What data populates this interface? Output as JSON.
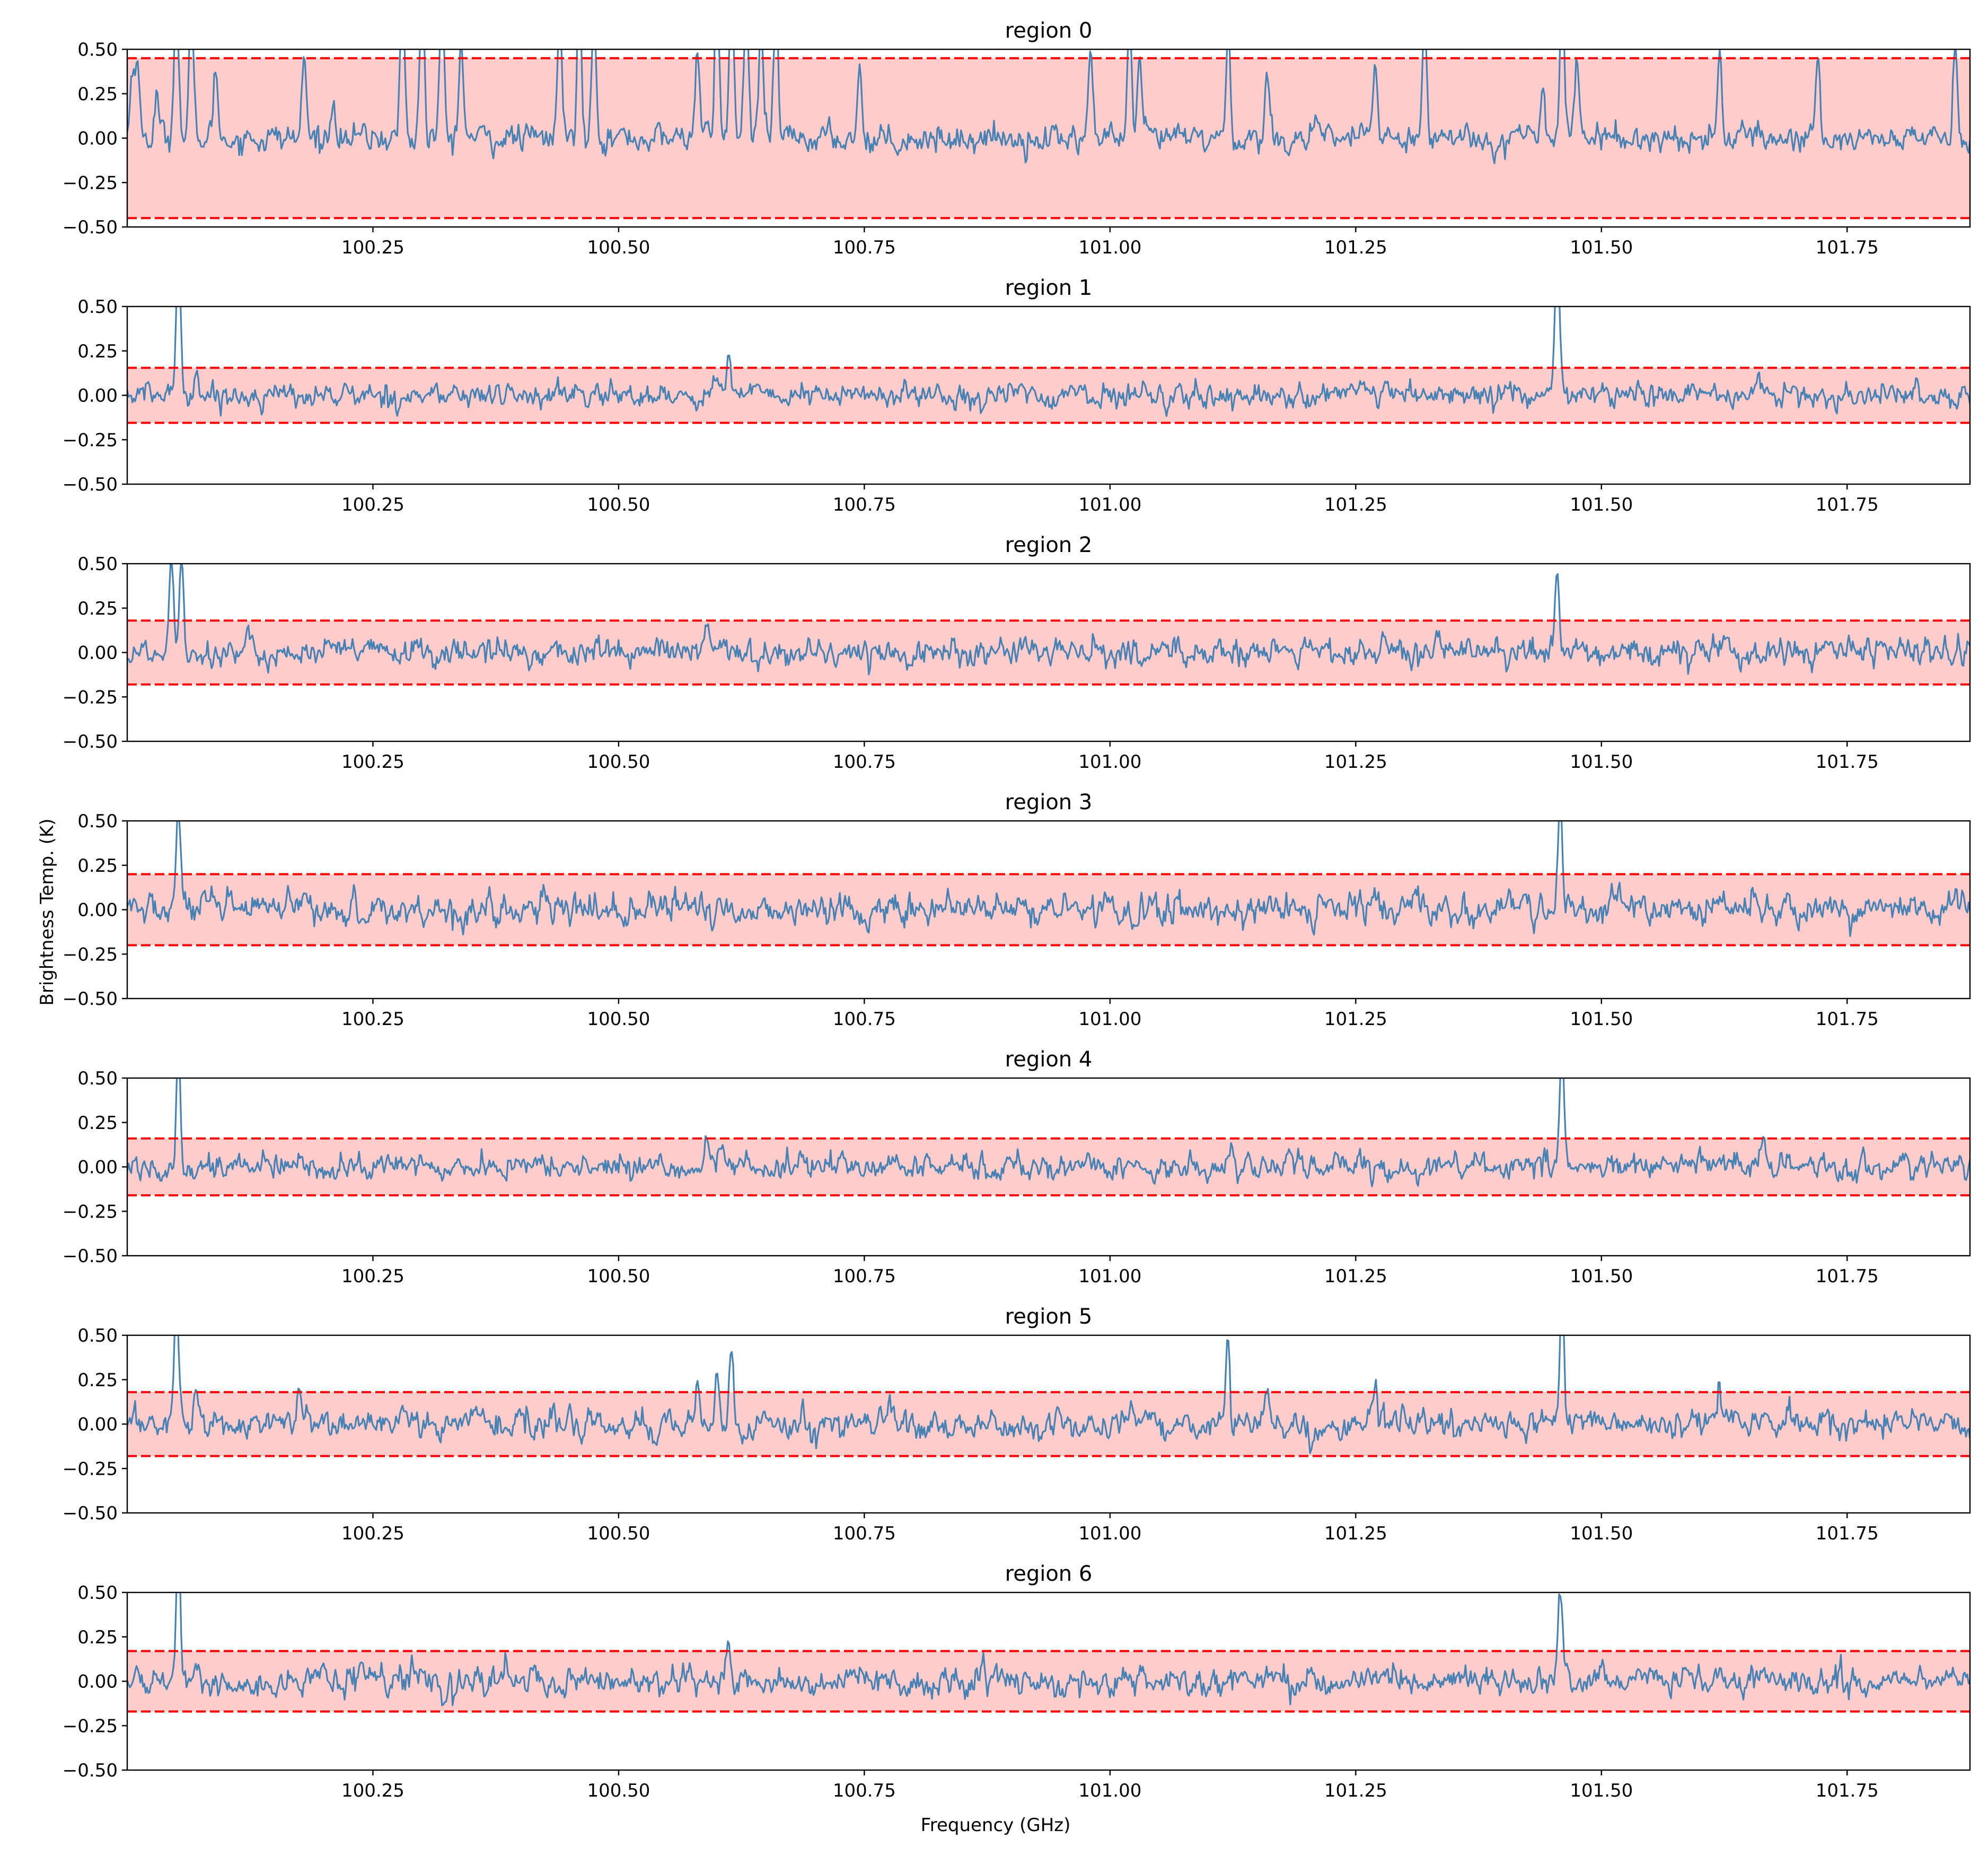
{
  "figure": {
    "xlabel": "Frequency (GHz)",
    "ylabel": "Brightness Temp. (K)"
  },
  "colors": {
    "line": "#4682b4",
    "band_fill": "#ffcccc",
    "threshold": "#ff0000",
    "axes": "#000000"
  },
  "chart_data": [
    {
      "type": "line",
      "title": "region 0",
      "xlabel": "",
      "ylabel": "",
      "xlim": [
        100.0,
        101.875
      ],
      "ylim": [
        -0.5,
        0.5
      ],
      "xticks": [
        "100.25",
        "100.50",
        "100.75",
        "101.00",
        "101.25",
        "101.50",
        "101.75"
      ],
      "yticks": [
        "0.50",
        "0.25",
        "0.00",
        "−0.25",
        "−0.50"
      ],
      "threshold": 0.45,
      "noise_rms": 0.035,
      "baseline": 0.0,
      "peaks": [
        {
          "x": 100.005,
          "y": 0.35
        },
        {
          "x": 100.01,
          "y": 0.45
        },
        {
          "x": 100.03,
          "y": 0.25
        },
        {
          "x": 100.05,
          "y": 0.9
        },
        {
          "x": 100.065,
          "y": 0.7
        },
        {
          "x": 100.09,
          "y": 0.4
        },
        {
          "x": 100.18,
          "y": 0.45
        },
        {
          "x": 100.21,
          "y": 0.25
        },
        {
          "x": 100.28,
          "y": 0.85
        },
        {
          "x": 100.3,
          "y": 0.9
        },
        {
          "x": 100.32,
          "y": 0.8
        },
        {
          "x": 100.34,
          "y": 0.55
        },
        {
          "x": 100.44,
          "y": 0.7
        },
        {
          "x": 100.46,
          "y": 0.85
        },
        {
          "x": 100.475,
          "y": 0.8
        },
        {
          "x": 100.58,
          "y": 0.55
        },
        {
          "x": 100.6,
          "y": 0.9
        },
        {
          "x": 100.615,
          "y": 0.85
        },
        {
          "x": 100.63,
          "y": 0.8
        },
        {
          "x": 100.645,
          "y": 0.6
        },
        {
          "x": 100.66,
          "y": 0.7
        },
        {
          "x": 100.745,
          "y": 0.4
        },
        {
          "x": 100.98,
          "y": 0.5
        },
        {
          "x": 101.02,
          "y": 0.55
        },
        {
          "x": 101.03,
          "y": 0.4
        },
        {
          "x": 101.12,
          "y": 0.55
        },
        {
          "x": 101.16,
          "y": 0.35
        },
        {
          "x": 101.27,
          "y": 0.45
        },
        {
          "x": 101.32,
          "y": 0.8
        },
        {
          "x": 101.44,
          "y": 0.35
        },
        {
          "x": 101.46,
          "y": 0.9
        },
        {
          "x": 101.475,
          "y": 0.5
        },
        {
          "x": 101.62,
          "y": 0.5
        },
        {
          "x": 101.72,
          "y": 0.5
        },
        {
          "x": 101.86,
          "y": 0.55
        }
      ]
    },
    {
      "type": "line",
      "title": "region 1",
      "xlabel": "",
      "ylabel": "",
      "xlim": [
        100.0,
        101.875
      ],
      "ylim": [
        -0.5,
        0.5
      ],
      "xticks": [
        "100.25",
        "100.50",
        "100.75",
        "101.00",
        "101.25",
        "101.50",
        "101.75"
      ],
      "yticks": [
        "0.50",
        "0.25",
        "0.00",
        "−0.25",
        "−0.50"
      ],
      "threshold": 0.155,
      "noise_rms": 0.03,
      "baseline": 0.0,
      "peaks": [
        {
          "x": 100.052,
          "y": 0.85
        },
        {
          "x": 100.07,
          "y": 0.16
        },
        {
          "x": 100.6,
          "y": 0.14
        },
        {
          "x": 100.612,
          "y": 0.26
        },
        {
          "x": 101.455,
          "y": 0.8
        }
      ]
    },
    {
      "type": "line",
      "title": "region 2",
      "xlabel": "",
      "ylabel": "",
      "xlim": [
        100.0,
        101.875
      ],
      "ylim": [
        -0.5,
        0.5
      ],
      "xticks": [
        "100.25",
        "100.50",
        "100.75",
        "101.00",
        "101.25",
        "101.50",
        "101.75"
      ],
      "yticks": [
        "0.50",
        "0.25",
        "0.00",
        "−0.25",
        "−0.50"
      ],
      "threshold": 0.18,
      "noise_rms": 0.035,
      "baseline": 0.0,
      "peaks": [
        {
          "x": 100.045,
          "y": 0.55
        },
        {
          "x": 100.055,
          "y": 0.6
        },
        {
          "x": 100.59,
          "y": 0.15
        },
        {
          "x": 101.455,
          "y": 0.45
        }
      ]
    },
    {
      "type": "line",
      "title": "region 3",
      "xlabel": "",
      "ylabel": "",
      "xlim": [
        100.0,
        101.875
      ],
      "ylim": [
        -0.5,
        0.5
      ],
      "xticks": [
        "100.25",
        "100.50",
        "100.75",
        "101.00",
        "101.25",
        "101.50",
        "101.75"
      ],
      "yticks": [
        "0.50",
        "0.25",
        "0.00",
        "−0.25",
        "−0.50"
      ],
      "threshold": 0.2,
      "noise_rms": 0.04,
      "baseline": 0.0,
      "peaks": [
        {
          "x": 100.052,
          "y": 0.6
        },
        {
          "x": 101.458,
          "y": 0.6
        }
      ]
    },
    {
      "type": "line",
      "title": "region 4",
      "xlabel": "",
      "ylabel": "",
      "xlim": [
        100.0,
        101.875
      ],
      "ylim": [
        -0.5,
        0.5
      ],
      "xticks": [
        "100.25",
        "100.50",
        "100.75",
        "101.00",
        "101.25",
        "101.50",
        "101.75"
      ],
      "yticks": [
        "0.50",
        "0.25",
        "0.00",
        "−0.25",
        "−0.50"
      ],
      "threshold": 0.16,
      "noise_rms": 0.032,
      "baseline": 0.0,
      "peaks": [
        {
          "x": 100.052,
          "y": 0.7
        },
        {
          "x": 100.59,
          "y": 0.15
        },
        {
          "x": 101.125,
          "y": 0.16
        },
        {
          "x": 101.46,
          "y": 0.75
        },
        {
          "x": 101.665,
          "y": 0.14
        }
      ]
    },
    {
      "type": "line",
      "title": "region 5",
      "xlabel": "",
      "ylabel": "",
      "xlim": [
        100.0,
        101.875
      ],
      "ylim": [
        -0.5,
        0.5
      ],
      "xticks": [
        "100.25",
        "100.50",
        "100.75",
        "101.00",
        "101.25",
        "101.50",
        "101.75"
      ],
      "yticks": [
        "0.50",
        "0.25",
        "0.00",
        "−0.25",
        "−0.50"
      ],
      "threshold": 0.18,
      "noise_rms": 0.035,
      "baseline": 0.0,
      "peaks": [
        {
          "x": 100.05,
          "y": 0.8
        },
        {
          "x": 100.07,
          "y": 0.22
        },
        {
          "x": 100.175,
          "y": 0.2
        },
        {
          "x": 100.58,
          "y": 0.25
        },
        {
          "x": 100.6,
          "y": 0.25
        },
        {
          "x": 100.615,
          "y": 0.45
        },
        {
          "x": 101.12,
          "y": 0.5
        },
        {
          "x": 101.16,
          "y": 0.17
        },
        {
          "x": 101.27,
          "y": 0.18
        },
        {
          "x": 101.46,
          "y": 0.75
        },
        {
          "x": 101.62,
          "y": 0.18
        }
      ]
    },
    {
      "type": "line",
      "title": "region 6",
      "xlabel": "",
      "ylabel": "",
      "xlim": [
        100.0,
        101.875
      ],
      "ylim": [
        -0.5,
        0.5
      ],
      "xticks": [
        "100.25",
        "100.50",
        "100.75",
        "101.00",
        "101.25",
        "101.50",
        "101.75"
      ],
      "yticks": [
        "0.50",
        "0.25",
        "0.00",
        "−0.25",
        "−0.50"
      ],
      "threshold": 0.17,
      "noise_rms": 0.035,
      "baseline": 0.0,
      "peaks": [
        {
          "x": 100.052,
          "y": 0.75
        },
        {
          "x": 100.612,
          "y": 0.18
        },
        {
          "x": 101.458,
          "y": 0.55
        }
      ]
    }
  ]
}
